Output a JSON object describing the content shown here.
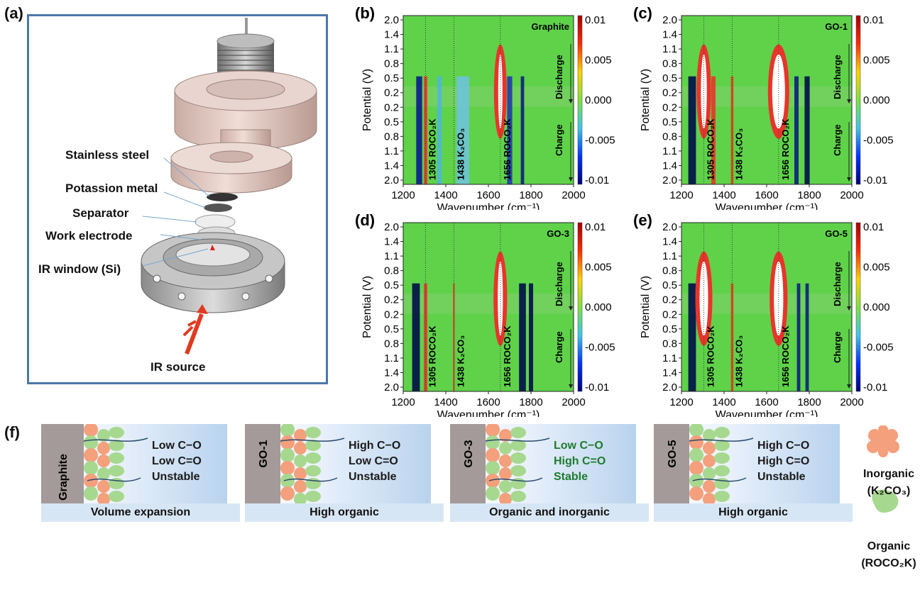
{
  "panel_a": {
    "label": "(a)",
    "parts": [
      "Stainless steel",
      "Potassion metal",
      "Separator",
      "Work electrode",
      "IR window (Si)"
    ],
    "source": "IR source"
  },
  "heatmaps": [
    {
      "label": "(b)",
      "sample": "Graphite"
    },
    {
      "label": "(c)",
      "sample": "GO-1"
    },
    {
      "label": "(d)",
      "sample": "GO-3"
    },
    {
      "label": "(e)",
      "sample": "GO-5"
    }
  ],
  "heatmap_common": {
    "ylabel": "Potential (V)",
    "xlabel": "Wavenumber (cm⁻¹)",
    "yticks": [
      "2.0",
      "1.4",
      "1.1",
      "0.8",
      "0.5",
      "0.2",
      "0.2",
      "0.5",
      "0.8",
      "1.1",
      "1.4",
      "2.0"
    ],
    "xticks": [
      "1200",
      "1400",
      "1600",
      "1800",
      "2000"
    ],
    "colorbar_ticks": [
      "0.01",
      "0.005",
      "0.000",
      "-0.005",
      "-0.01"
    ],
    "peak_labels": [
      "1305 ROCO₂K",
      "1438 K₂CO₃",
      "1656 ROCO₂K"
    ],
    "discharge": "Discharge",
    "charge": "Charge"
  },
  "chart_data": [
    {
      "type": "heatmap",
      "title": "Graphite",
      "xlabel": "Wavenumber (cm⁻¹)",
      "ylabel": "Potential (V)",
      "xlim": [
        1200,
        2000
      ],
      "clim": [
        -0.01,
        0.01
      ],
      "annotated_peaks": [
        1305,
        1438,
        1656
      ],
      "colormap": "jet"
    },
    {
      "type": "heatmap",
      "title": "GO-1",
      "xlabel": "Wavenumber (cm⁻¹)",
      "ylabel": "Potential (V)",
      "xlim": [
        1200,
        2000
      ],
      "clim": [
        -0.01,
        0.01
      ],
      "annotated_peaks": [
        1305,
        1438,
        1656
      ],
      "colormap": "jet"
    },
    {
      "type": "heatmap",
      "title": "GO-3",
      "xlabel": "Wavenumber (cm⁻¹)",
      "ylabel": "Potential (V)",
      "xlim": [
        1200,
        2000
      ],
      "clim": [
        -0.01,
        0.01
      ],
      "annotated_peaks": [
        1305,
        1438,
        1656
      ],
      "colormap": "jet"
    },
    {
      "type": "heatmap",
      "title": "GO-5",
      "xlabel": "Wavenumber (cm⁻¹)",
      "ylabel": "Potential (V)",
      "xlim": [
        1200,
        2000
      ],
      "clim": [
        -0.01,
        0.01
      ],
      "annotated_peaks": [
        1305,
        1438,
        1656
      ],
      "colormap": "jet"
    }
  ],
  "panel_f": {
    "label": "(f)",
    "scenes": [
      {
        "electrode": "Graphite",
        "lines": [
          "Low C−O",
          "Low C=O",
          "Unstable"
        ],
        "caption": "Volume expansion",
        "text_color": "#1a1a1a"
      },
      {
        "electrode": "GO-1",
        "lines": [
          "High C−O",
          "Low C=O",
          "Unstable"
        ],
        "caption": "High organic",
        "text_color": "#1a1a1a"
      },
      {
        "electrode": "GO-3",
        "lines": [
          "Low C−O",
          "High C=O",
          "Stable"
        ],
        "caption": "Organic and inorganic",
        "text_color": "#1f7a2e"
      },
      {
        "electrode": "GO-5",
        "lines": [
          "High C−O",
          "High C=O",
          "Unstable"
        ],
        "caption": "High organic",
        "text_color": "#1a1a1a"
      }
    ],
    "legend": {
      "inorganic": "Inorganic",
      "inorganic_formula": "(K₂CO₃)",
      "organic": "Organic",
      "organic_formula": "(ROCO₂K)",
      "inorganic_color": "#f4a07c",
      "organic_color": "#a7d88f"
    }
  }
}
